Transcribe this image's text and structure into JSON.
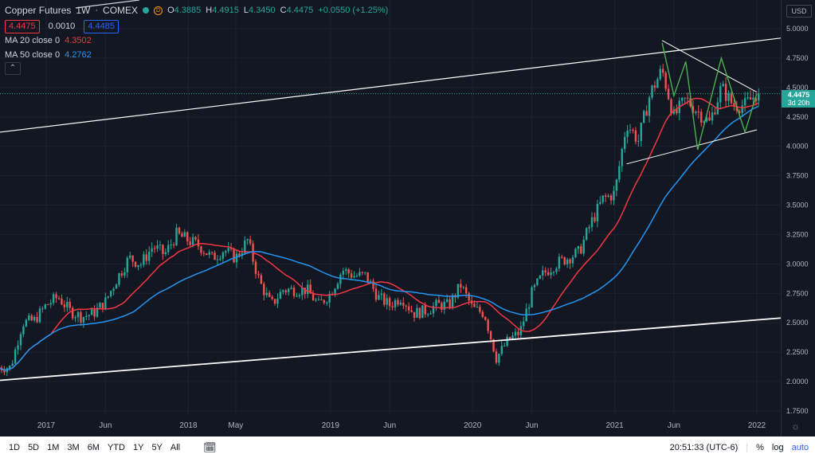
{
  "header": {
    "symbol": "Copper Futures",
    "interval": "1W",
    "exchange": "COMEX",
    "ohlc": {
      "o_label": "O",
      "o": "4.3885",
      "h_label": "H",
      "h": "4.4915",
      "l_label": "L",
      "l": "4.3450",
      "c_label": "C",
      "c": "4.4475",
      "change": "+0.0550 (+1.25%)"
    },
    "bid": "4.4475",
    "spread": "0.0010",
    "ask": "4.4485"
  },
  "indicators": [
    {
      "label": "MA 20 close 0",
      "value": "4.3502",
      "color": "#f23645"
    },
    {
      "label": "MA 50 close 0",
      "value": "4.2762",
      "color": "#2196f3"
    }
  ],
  "collapse_icon": "chevron-up-icon",
  "yaxis": {
    "currency": "USD",
    "current_price": "4.4475",
    "countdown": "3d 20h",
    "ticks": [
      "5.0000",
      "4.7500",
      "4.5000",
      "4.2500",
      "4.0000",
      "3.7500",
      "3.5000",
      "3.2500",
      "3.0000",
      "2.7500",
      "2.5000",
      "2.2500",
      "2.0000",
      "1.7500"
    ]
  },
  "xaxis": {
    "labels": [
      "2017",
      "Jun",
      "2018",
      "May",
      "2019",
      "Jun",
      "2020",
      "Jun",
      "2021",
      "Jun",
      "2022"
    ]
  },
  "toolbar": {
    "timeframes": [
      "1D",
      "5D",
      "1M",
      "3M",
      "6M",
      "YTD",
      "1Y",
      "5Y",
      "All"
    ],
    "time": "20:51:33 (UTC-6)",
    "percent": "%",
    "log": "log",
    "auto": "auto"
  },
  "colors": {
    "background": "#131722",
    "up": "#26a69a",
    "down": "#ef5350",
    "ma20": "#f23645",
    "ma50": "#2196f3",
    "pattern": "#4caf50"
  },
  "chart_data": {
    "type": "candlestick",
    "title": "Copper Futures",
    "interval": "1W",
    "ylim": [
      1.55,
      5.27
    ],
    "x_range": [
      "2016-09",
      "2022-02"
    ],
    "close_series": [
      [
        "2016-10",
        2.12
      ],
      [
        "2016-11",
        2.5
      ],
      [
        "2016-12",
        2.52
      ],
      [
        "2017-01",
        2.65
      ],
      [
        "2017-02",
        2.72
      ],
      [
        "2017-03",
        2.6
      ],
      [
        "2017-04",
        2.55
      ],
      [
        "2017-05",
        2.58
      ],
      [
        "2017-06",
        2.68
      ],
      [
        "2017-07",
        2.88
      ],
      [
        "2017-08",
        3.05
      ],
      [
        "2017-09",
        3.0
      ],
      [
        "2017-10",
        3.15
      ],
      [
        "2017-11",
        3.08
      ],
      [
        "2017-12",
        3.25
      ],
      [
        "2018-01",
        3.2
      ],
      [
        "2018-02",
        3.15
      ],
      [
        "2018-03",
        3.05
      ],
      [
        "2018-04",
        3.12
      ],
      [
        "2018-05",
        3.05
      ],
      [
        "2018-06",
        3.2
      ],
      [
        "2018-07",
        2.85
      ],
      [
        "2018-08",
        2.65
      ],
      [
        "2018-09",
        2.78
      ],
      [
        "2018-10",
        2.78
      ],
      [
        "2018-11",
        2.78
      ],
      [
        "2018-12",
        2.65
      ],
      [
        "2019-01",
        2.75
      ],
      [
        "2019-02",
        2.95
      ],
      [
        "2019-03",
        2.9
      ],
      [
        "2019-04",
        2.9
      ],
      [
        "2019-05",
        2.72
      ],
      [
        "2019-06",
        2.65
      ],
      [
        "2019-07",
        2.72
      ],
      [
        "2019-08",
        2.58
      ],
      [
        "2019-09",
        2.6
      ],
      [
        "2019-10",
        2.65
      ],
      [
        "2019-11",
        2.65
      ],
      [
        "2019-12",
        2.82
      ],
      [
        "2020-01",
        2.62
      ],
      [
        "2020-02",
        2.58
      ],
      [
        "2020-03",
        2.2
      ],
      [
        "2020-04",
        2.35
      ],
      [
        "2020-05",
        2.42
      ],
      [
        "2020-06",
        2.75
      ],
      [
        "2020-07",
        2.92
      ],
      [
        "2020-08",
        3.0
      ],
      [
        "2020-09",
        3.05
      ],
      [
        "2020-10",
        3.1
      ],
      [
        "2020-11",
        3.35
      ],
      [
        "2020-12",
        3.55
      ],
      [
        "2021-01",
        3.6
      ],
      [
        "2021-02",
        4.2
      ],
      [
        "2021-03",
        4.05
      ],
      [
        "2021-04",
        4.45
      ],
      [
        "2021-05",
        4.65
      ],
      [
        "2021-06",
        4.25
      ],
      [
        "2021-07",
        4.4
      ],
      [
        "2021-08",
        4.3
      ],
      [
        "2021-09",
        4.2
      ],
      [
        "2021-10",
        4.5
      ],
      [
        "2021-11",
        4.35
      ],
      [
        "2021-12",
        4.35
      ],
      [
        "2022-01",
        4.45
      ]
    ],
    "ma20": {
      "name": "MA 20 close 0",
      "last": 4.3502
    },
    "ma50": {
      "name": "MA 50 close 0",
      "last": 4.2762
    },
    "last_price": 4.4475
  }
}
